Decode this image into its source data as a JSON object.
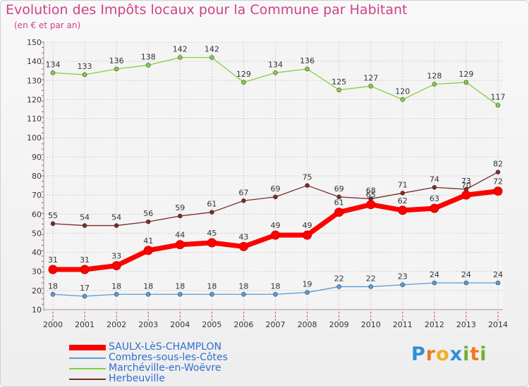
{
  "title": "Evolution des Impôts locaux pour la Commune par Habitant",
  "subtitle": "(en € et par an)",
  "chart_data": {
    "type": "line",
    "x": [
      2000,
      2001,
      2002,
      2003,
      2004,
      2005,
      2006,
      2007,
      2008,
      2009,
      2010,
      2011,
      2012,
      2013,
      2014
    ],
    "ylim": [
      10,
      150
    ],
    "ytick_step": 10,
    "grid": true,
    "series": [
      {
        "name": "SAULX-LèS-CHAMPLON",
        "color": "#ff0000",
        "values": [
          31,
          31,
          33,
          41,
          44,
          45,
          43,
          49,
          49,
          61,
          65,
          62,
          63,
          70,
          72
        ],
        "labels": [
          "31",
          "31",
          "33",
          "41",
          "44",
          "45",
          "43",
          "49",
          "49",
          "61",
          "65",
          "62",
          "63",
          "70",
          "72"
        ]
      },
      {
        "name": "Combres-sous-les-Côtes",
        "color": "#5b9bd5",
        "values": [
          18,
          17,
          18,
          18,
          18,
          18,
          18,
          18,
          19,
          22,
          22,
          23,
          24,
          24,
          24
        ],
        "labels": [
          "18",
          "17",
          "18",
          "18",
          "18",
          "18",
          "18",
          "18",
          "19",
          "22",
          "22",
          "23",
          "24",
          "24",
          "24"
        ]
      },
      {
        "name": "Marchéville-en-Woëvre",
        "color": "#80d040",
        "values": [
          134,
          133,
          136,
          138,
          142,
          142,
          129,
          134,
          136,
          125,
          127,
          120,
          128,
          129,
          117
        ],
        "labels": [
          "134",
          "133",
          "136",
          "138",
          "142",
          "142",
          "129",
          "134",
          "136",
          "125",
          "127",
          "120",
          "128",
          "129",
          "117"
        ]
      },
      {
        "name": "Herbeuville",
        "color": "#7a2a2a",
        "values": [
          55,
          54,
          54,
          56,
          59,
          61,
          67,
          69,
          75,
          69,
          68,
          71,
          74,
          73,
          82
        ],
        "labels": [
          "55",
          "54",
          "54",
          "56",
          "59",
          "61",
          "67",
          "69",
          "75",
          "69",
          "68",
          "71",
          "74",
          "73",
          "82"
        ]
      }
    ]
  },
  "logo": {
    "letters": [
      "P",
      "r",
      "o",
      "x",
      "i",
      "t",
      "i"
    ],
    "colors": [
      "#2e8fd8",
      "#f07820",
      "#f0b020",
      "#2e8fd8",
      "#70b030",
      "#f07820",
      "#70b030"
    ]
  }
}
